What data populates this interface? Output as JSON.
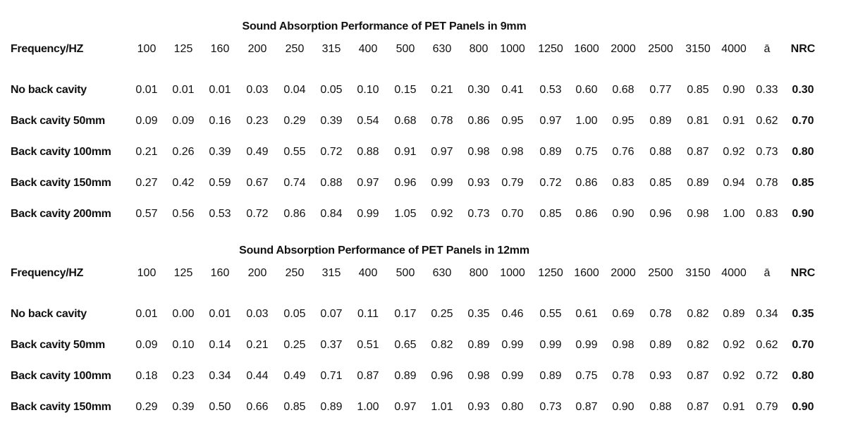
{
  "tables": [
    {
      "title": "Sound Absorption Performance of PET Panels in 9mm",
      "header": {
        "label": "Frequency/HZ",
        "columns": [
          "100",
          "125",
          "160",
          "200",
          "250",
          "315",
          "400",
          "500",
          "630",
          "800",
          "1000",
          "1250",
          "1600",
          "2000",
          "2500",
          "3150",
          "4000",
          "ā",
          "NRC"
        ]
      },
      "rows": [
        {
          "label": "No back cavity",
          "values": [
            "0.01",
            "0.01",
            "0.01",
            "0.03",
            "0.04",
            "0.05",
            "0.10",
            "0.15",
            "0.21",
            "0.30",
            "0.41",
            "0.53",
            "0.60",
            "0.68",
            "0.77",
            "0.85",
            "0.90",
            "0.33",
            "0.30"
          ]
        },
        {
          "label": "Back cavity 50mm",
          "values": [
            "0.09",
            "0.09",
            "0.16",
            "0.23",
            "0.29",
            "0.39",
            "0.54",
            "0.68",
            "0.78",
            "0.86",
            "0.95",
            "0.97",
            "1.00",
            "0.95",
            "0.89",
            "0.81",
            "0.91",
            "0.62",
            "0.70"
          ]
        },
        {
          "label": "Back cavity 100mm",
          "values": [
            "0.21",
            "0.26",
            "0.39",
            "0.49",
            "0.55",
            "0.72",
            "0.88",
            "0.91",
            "0.97",
            "0.98",
            "0.98",
            "0.89",
            "0.75",
            "0.76",
            "0.88",
            "0.87",
            "0.92",
            "0.73",
            "0.80"
          ]
        },
        {
          "label": "Back cavity 150mm",
          "values": [
            "0.27",
            "0.42",
            "0.59",
            "0.67",
            "0.74",
            "0.88",
            "0.97",
            "0.96",
            "0.99",
            "0.93",
            "0.79",
            "0.72",
            "0.86",
            "0.83",
            "0.85",
            "0.89",
            "0.94",
            "0.78",
            "0.85"
          ]
        },
        {
          "label": "Back cavity 200mm",
          "values": [
            "0.57",
            "0.56",
            "0.53",
            "0.72",
            "0.86",
            "0.84",
            "0.99",
            "1.05",
            "0.92",
            "0.73",
            "0.70",
            "0.85",
            "0.86",
            "0.90",
            "0.96",
            "0.98",
            "1.00",
            "0.83",
            "0.90"
          ]
        }
      ]
    },
    {
      "title": "Sound Absorption Performance of PET Panels in 12mm",
      "header": {
        "label": "Frequency/HZ",
        "columns": [
          "100",
          "125",
          "160",
          "200",
          "250",
          "315",
          "400",
          "500",
          "630",
          "800",
          "1000",
          "1250",
          "1600",
          "2000",
          "2500",
          "3150",
          "4000",
          "ā",
          "NRC"
        ]
      },
      "rows": [
        {
          "label": "No back cavity",
          "values": [
            "0.01",
            "0.00",
            "0.01",
            "0.03",
            "0.05",
            "0.07",
            "0.11",
            "0.17",
            "0.25",
            "0.35",
            "0.46",
            "0.55",
            "0.61",
            "0.69",
            "0.78",
            "0.82",
            "0.89",
            "0.34",
            "0.35"
          ]
        },
        {
          "label": "Back cavity 50mm",
          "values": [
            "0.09",
            "0.10",
            "0.14",
            "0.21",
            "0.25",
            "0.37",
            "0.51",
            "0.65",
            "0.82",
            "0.89",
            "0.99",
            "0.99",
            "0.99",
            "0.98",
            "0.89",
            "0.82",
            "0.92",
            "0.62",
            "0.70"
          ]
        },
        {
          "label": "Back cavity 100mm",
          "values": [
            "0.18",
            "0.23",
            "0.34",
            "0.44",
            "0.49",
            "0.71",
            "0.87",
            "0.89",
            "0.96",
            "0.98",
            "0.99",
            "0.89",
            "0.75",
            "0.78",
            "0.93",
            "0.87",
            "0.92",
            "0.72",
            "0.80"
          ]
        },
        {
          "label": "Back cavity 150mm",
          "values": [
            "0.29",
            "0.39",
            "0.50",
            "0.66",
            "0.85",
            "0.89",
            "1.00",
            "0.97",
            "1.01",
            "0.93",
            "0.80",
            "0.73",
            "0.87",
            "0.90",
            "0.88",
            "0.87",
            "0.91",
            "0.79",
            "0.90"
          ]
        }
      ]
    }
  ]
}
